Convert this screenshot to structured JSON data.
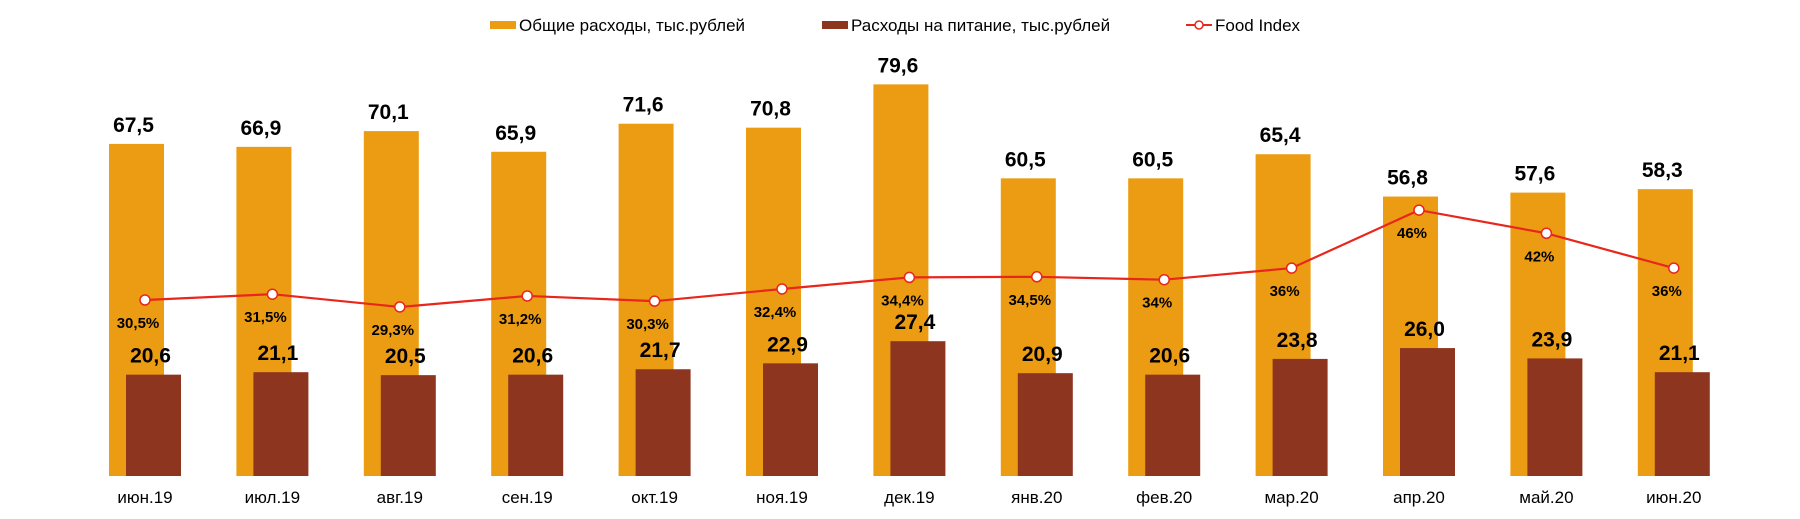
{
  "chart_data": {
    "type": "bar",
    "title": "",
    "xlabel": "",
    "ylabel": "",
    "legend_position": "top",
    "grid": false,
    "categories": [
      "июн.19",
      "июл.19",
      "авг.19",
      "сен.19",
      "окт.19",
      "ноя.19",
      "дек.19",
      "янв.20",
      "фев.20",
      "мар.20",
      "апр.20",
      "май.20",
      "июн.20"
    ],
    "series": [
      {
        "name": "Общие расходы, тыс.рублей",
        "kind": "bar",
        "color": "#EC9C12",
        "values": [
          67.5,
          66.9,
          70.1,
          65.9,
          71.6,
          70.8,
          79.6,
          60.5,
          60.5,
          65.4,
          56.8,
          57.6,
          58.3
        ],
        "labels": [
          "67,5",
          "66,9",
          "70,1",
          "65,9",
          "71,6",
          "70,8",
          "79,6",
          "60,5",
          "60,5",
          "65,4",
          "56,8",
          "57,6",
          "58,3"
        ]
      },
      {
        "name": "Расходы на питание, тыс.рублей",
        "kind": "bar",
        "color": "#8E3520",
        "values": [
          20.6,
          21.1,
          20.5,
          20.6,
          21.7,
          22.9,
          27.4,
          20.9,
          20.6,
          23.8,
          26.0,
          23.9,
          21.1
        ],
        "labels": [
          "20,6",
          "21,1",
          "20,5",
          "20,6",
          "21,7",
          "22,9",
          "27,4",
          "20,9",
          "20,6",
          "23,8",
          "26,0",
          "23,9",
          "21,1"
        ]
      },
      {
        "name": "Food Index",
        "kind": "line",
        "color": "#E8261C",
        "unit": "%",
        "values": [
          30.5,
          31.5,
          29.3,
          31.2,
          30.3,
          32.4,
          34.4,
          34.5,
          34,
          36,
          46,
          42,
          36
        ],
        "labels": [
          "30,5%",
          "31,5%",
          "29,3%",
          "31,2%",
          "30,3%",
          "32,4%",
          "34,4%",
          "34,5%",
          "34%",
          "36%",
          "46%",
          "42%",
          "36%"
        ]
      }
    ],
    "ylim": [
      0,
      80
    ]
  }
}
